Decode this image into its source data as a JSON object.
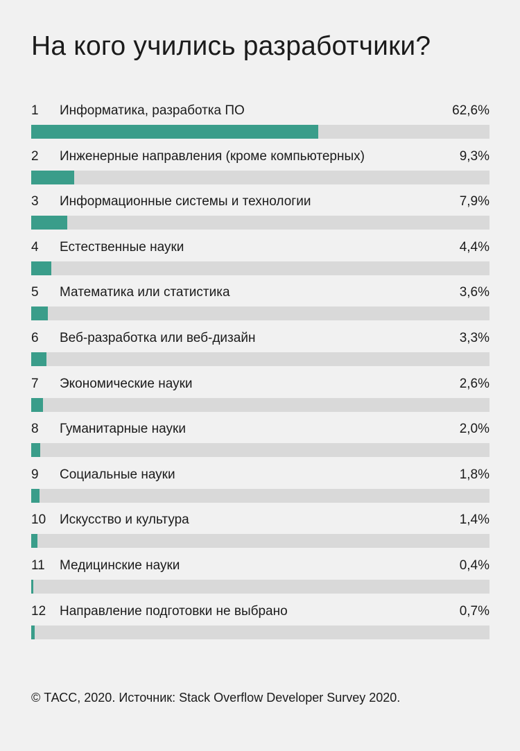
{
  "title": "На кого учились разработчики?",
  "source": "© ТАСС, 2020. Источник: Stack Overflow Developer Survey 2020.",
  "colors": {
    "bar_fill": "#3a9d8a",
    "bar_track": "#d9d9d9",
    "background": "#f1f1f1"
  },
  "chart_data": {
    "type": "bar",
    "orientation": "horizontal",
    "title": "На кого учились разработчики?",
    "xlim": [
      0,
      100
    ],
    "unit": "%",
    "items": [
      {
        "rank": "1",
        "label": "Информатика, разработка ПО",
        "value": 62.6,
        "value_label": "62,6%"
      },
      {
        "rank": "2",
        "label": "Инженерные направления (кроме компьютерных)",
        "value": 9.3,
        "value_label": "9,3%"
      },
      {
        "rank": "3",
        "label": "Информационные системы и технологии",
        "value": 7.9,
        "value_label": "7,9%"
      },
      {
        "rank": "4",
        "label": "Естественные науки",
        "value": 4.4,
        "value_label": "4,4%"
      },
      {
        "rank": "5",
        "label": "Математика или статистика",
        "value": 3.6,
        "value_label": "3,6%"
      },
      {
        "rank": "6",
        "label": "Веб-разработка или веб-дизайн",
        "value": 3.3,
        "value_label": "3,3%"
      },
      {
        "rank": "7",
        "label": "Экономические науки",
        "value": 2.6,
        "value_label": "2,6%"
      },
      {
        "rank": "8",
        "label": "Гуманитарные науки",
        "value": 2.0,
        "value_label": "2,0%"
      },
      {
        "rank": "9",
        "label": "Социальные науки",
        "value": 1.8,
        "value_label": "1,8%"
      },
      {
        "rank": "10",
        "label": "Искусство и культура",
        "value": 1.4,
        "value_label": "1,4%"
      },
      {
        "rank": "11",
        "label": "Медицинские науки",
        "value": 0.4,
        "value_label": "0,4%"
      },
      {
        "rank": "12",
        "label": "Направление подготовки не выбрано",
        "value": 0.7,
        "value_label": "0,7%"
      }
    ]
  }
}
